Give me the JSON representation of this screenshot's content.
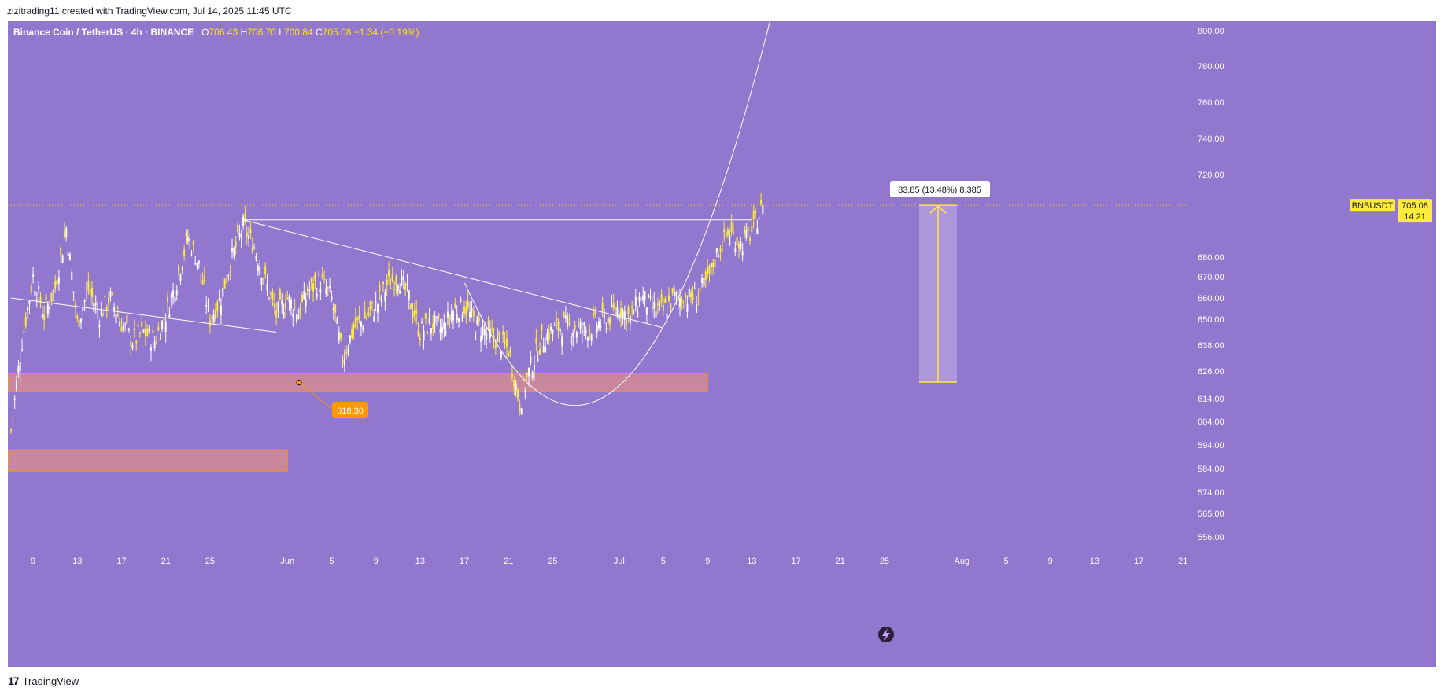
{
  "attribution": "zizitrading11 created with TradingView.com, Jul 14, 2025 11:45 UTC",
  "header": {
    "symbol": "Binance Coin / TetherUS · 4h · BINANCE",
    "open_label": "O",
    "open": "706.43",
    "high_label": "H",
    "high": "706.70",
    "low_label": "L",
    "low": "700.84",
    "close_label": "C",
    "close": "705.08",
    "change": "−1.34 (−0.19%)"
  },
  "footer": {
    "logo_text": "TradingView"
  },
  "colors": {
    "background": "#9277cf",
    "candle_up": "#ffffff",
    "candle_down": "#ffeb3b",
    "zone_fill": "#d98c8c",
    "zone_border": "#ff9800",
    "price_line": "#ffd600",
    "label_bg": "#ffeb3b",
    "measure_fill": "#b49ce0",
    "pin_bg": "#ff9800"
  },
  "chart_data": {
    "type": "candlestick",
    "symbol": "BNBUSDT",
    "timeframe": "4h",
    "y_axis": {
      "ticks": [
        "800.00",
        "780.00",
        "760.00",
        "740.00",
        "720.00",
        "680.00",
        "670.00",
        "660.00",
        "650.00",
        "638.00",
        "626.00",
        "614.00",
        "604.00",
        "594.00",
        "584.00",
        "574.00",
        "565.00",
        "556.00"
      ],
      "scale": "log"
    },
    "x_axis": {
      "ticks": [
        "9",
        "13",
        "17",
        "21",
        "25",
        "Jun",
        "5",
        "9",
        "13",
        "17",
        "21",
        "25",
        "Jul",
        "5",
        "9",
        "13",
        "17",
        "21",
        "25",
        "Aug",
        "5",
        "9",
        "13",
        "17",
        "21"
      ]
    },
    "last_price": {
      "symbol_label": "BNBUSDT",
      "value": "705.08",
      "countdown": "14:21"
    },
    "series_close_path": [
      [
        "May 7",
        600
      ],
      [
        "May 8",
        640
      ],
      [
        "May 9",
        670
      ],
      [
        "May 10",
        652
      ],
      [
        "May 11",
        665
      ],
      [
        "May 12",
        694
      ],
      [
        "May 13",
        648
      ],
      [
        "May 14",
        664
      ],
      [
        "May 15",
        652
      ],
      [
        "May 16",
        660
      ],
      [
        "May 17",
        648
      ],
      [
        "May 18",
        640
      ],
      [
        "May 19",
        644
      ],
      [
        "May 20",
        640
      ],
      [
        "May 21",
        652
      ],
      [
        "May 22",
        668
      ],
      [
        "May 23",
        690
      ],
      [
        "May 24",
        676
      ],
      [
        "May 25",
        650
      ],
      [
        "May 26",
        660
      ],
      [
        "May 27",
        680
      ],
      [
        "May 28",
        695
      ],
      [
        "May 29",
        685
      ],
      [
        "May 30",
        668
      ],
      [
        "May 31",
        652
      ],
      [
        "Jun 1",
        660
      ],
      [
        "Jun 2",
        653
      ],
      [
        "Jun 3",
        664
      ],
      [
        "Jun 4",
        668
      ],
      [
        "Jun 5",
        660
      ],
      [
        "Jun 6",
        632
      ],
      [
        "Jun 7",
        646
      ],
      [
        "Jun 8",
        650
      ],
      [
        "Jun 9",
        656
      ],
      [
        "Jun 10",
        666
      ],
      [
        "Jun 11",
        670
      ],
      [
        "Jun 12",
        660
      ],
      [
        "Jun 13",
        644
      ],
      [
        "Jun 14",
        648
      ],
      [
        "Jun 15",
        645
      ],
      [
        "Jun 16",
        654
      ],
      [
        "Jun 17",
        656
      ],
      [
        "Jun 18",
        648
      ],
      [
        "Jun 19",
        644
      ],
      [
        "Jun 20",
        640
      ],
      [
        "Jun 21",
        636
      ],
      [
        "Jun 22",
        612
      ],
      [
        "Jun 23",
        628
      ],
      [
        "Jun 24",
        640
      ],
      [
        "Jun 25",
        645
      ],
      [
        "Jun 26",
        647
      ],
      [
        "Jun 27",
        646
      ],
      [
        "Jun 28",
        645
      ],
      [
        "Jun 29",
        648
      ],
      [
        "Jun 30",
        650
      ],
      [
        "Jul 1",
        656
      ],
      [
        "Jul 2",
        650
      ],
      [
        "Jul 3",
        661
      ],
      [
        "Jul 4",
        655
      ],
      [
        "Jul 5",
        654
      ],
      [
        "Jul 6",
        660
      ],
      [
        "Jul 7",
        660
      ],
      [
        "Jul 8",
        661
      ],
      [
        "Jul 9",
        668
      ],
      [
        "Jul 10",
        684
      ],
      [
        "Jul 11",
        692
      ],
      [
        "Jul 12",
        686
      ],
      [
        "Jul 13",
        692
      ],
      [
        "Jul 14",
        705.08
      ]
    ],
    "annotations": {
      "support_zone_1": {
        "low": 617,
        "high": 625,
        "from": "May 7",
        "to": "Jul 9"
      },
      "support_zone_2": {
        "low": 583,
        "high": 592,
        "from": "May 7",
        "to": "Jun 1"
      },
      "pin_label": "618.30",
      "resistance_line": {
        "value": 698,
        "from": "May 28",
        "to": "Jul 13"
      },
      "measure_label": "83.85 (13.48%) 8,385",
      "measure_range": {
        "low": 621.2,
        "high": 705.08
      },
      "descending_trendlines": [
        {
          "from": [
            "May 7",
            660
          ],
          "to": [
            "May 31",
            644
          ]
        },
        {
          "from": [
            "May 28",
            698
          ],
          "to": [
            "Jul 5",
            646
          ]
        }
      ],
      "cup_curve": {
        "bottom": 611,
        "bottom_date": "Jun 27"
      }
    }
  }
}
